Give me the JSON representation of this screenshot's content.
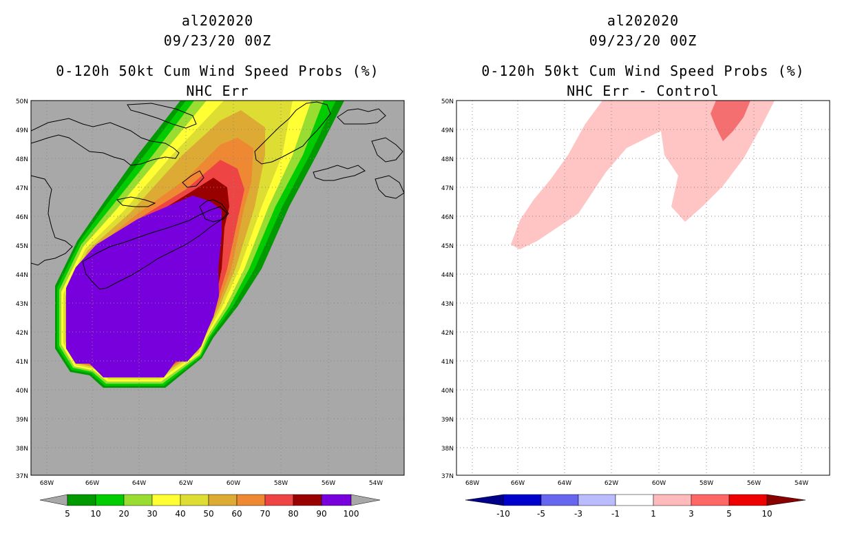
{
  "left_panel": {
    "line1": "al202020",
    "line2": "09/23/20 00Z",
    "line3": "0-120h 50kt Cum Wind Speed Probs (%)",
    "line4": "NHC Err",
    "colorbar_labels": [
      "5",
      "10",
      "20",
      "30",
      "40",
      "50",
      "60",
      "70",
      "80",
      "90",
      "100"
    ],
    "colorbar_colors": [
      "#009900",
      "#00cc00",
      "#99dd33",
      "#ffff33",
      "#dddd33",
      "#ddaa33",
      "#ee8833",
      "#ee4444",
      "#990000",
      "#7700dd"
    ]
  },
  "right_panel": {
    "line1": "al202020",
    "line2": "09/23/20 00Z",
    "line3": "0-120h 50kt Cum Wind Speed Probs (%)",
    "line4": "NHC Err - Control",
    "colorbar_labels": [
      "-10",
      "-5",
      "-3",
      "-1",
      "1",
      "3",
      "5",
      "10"
    ],
    "colorbar_colors": [
      "#0000cc",
      "#6666ee",
      "#bbbbff",
      "#ffffff",
      "#ffbbbb",
      "#ff6666",
      "#ee0000"
    ]
  },
  "lat_labels": [
    "50N",
    "49N",
    "48N",
    "47N",
    "46N",
    "45N",
    "44N",
    "43N",
    "42N",
    "41N",
    "40N",
    "39N",
    "38N",
    "37N"
  ],
  "lon_labels": [
    "68W",
    "66W",
    "64W",
    "62W",
    "60W",
    "58W",
    "56W",
    "54W"
  ],
  "colors": {
    "background_gray": "#a8a8a8",
    "coast": "#000000",
    "grid": "#888888",
    "diff_pink_light": "#ffc4c4",
    "diff_pink_dark": "#f47070"
  }
}
